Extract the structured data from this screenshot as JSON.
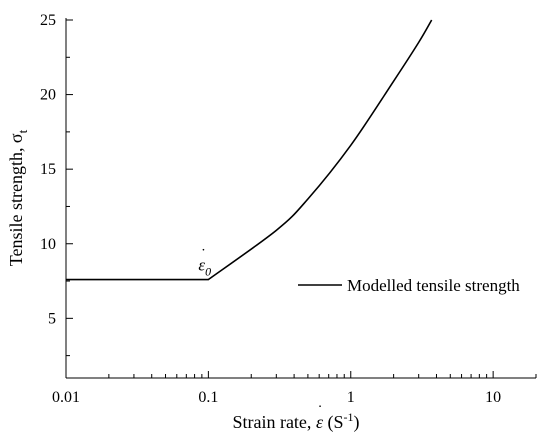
{
  "chart_data": {
    "type": "line",
    "title": "",
    "xlabel": "Strain rate, ε̇ (S-1)",
    "xlabel_parts": {
      "prefix": "Strain rate, ",
      "symbol": "ε",
      "unit_open": " (S",
      "unit_exp": "-1",
      "unit_close": ")"
    },
    "ylabel": "Tensile strength, σt",
    "ylabel_parts": {
      "prefix": "Tensile strength, ",
      "symbol": "σ",
      "subscript": "t"
    },
    "x_scale": "log",
    "xlim": [
      0.01,
      20
    ],
    "ylim": [
      1,
      25
    ],
    "x_ticks": [
      0.01,
      0.1,
      1,
      10
    ],
    "x_tick_labels": [
      "0.01",
      "0.1",
      "1",
      "10"
    ],
    "y_ticks": [
      5,
      10,
      15,
      20,
      25
    ],
    "y_tick_labels": [
      "5",
      "10",
      "15",
      "20",
      "25"
    ],
    "grid": false,
    "legend_position": "center-right",
    "series": [
      {
        "name": "Modelled tensile strength",
        "color": "#000000",
        "x": [
          0.01,
          0.1,
          0.3,
          0.5,
          1,
          2,
          3,
          3.7
        ],
        "y": [
          7.6,
          7.6,
          10.9,
          13.0,
          16.6,
          20.9,
          23.5,
          25.0
        ]
      }
    ],
    "annotations": [
      {
        "text": "ε0",
        "symbol": "ε",
        "subscript": "0",
        "x": 0.1,
        "y": 7.6
      }
    ]
  }
}
